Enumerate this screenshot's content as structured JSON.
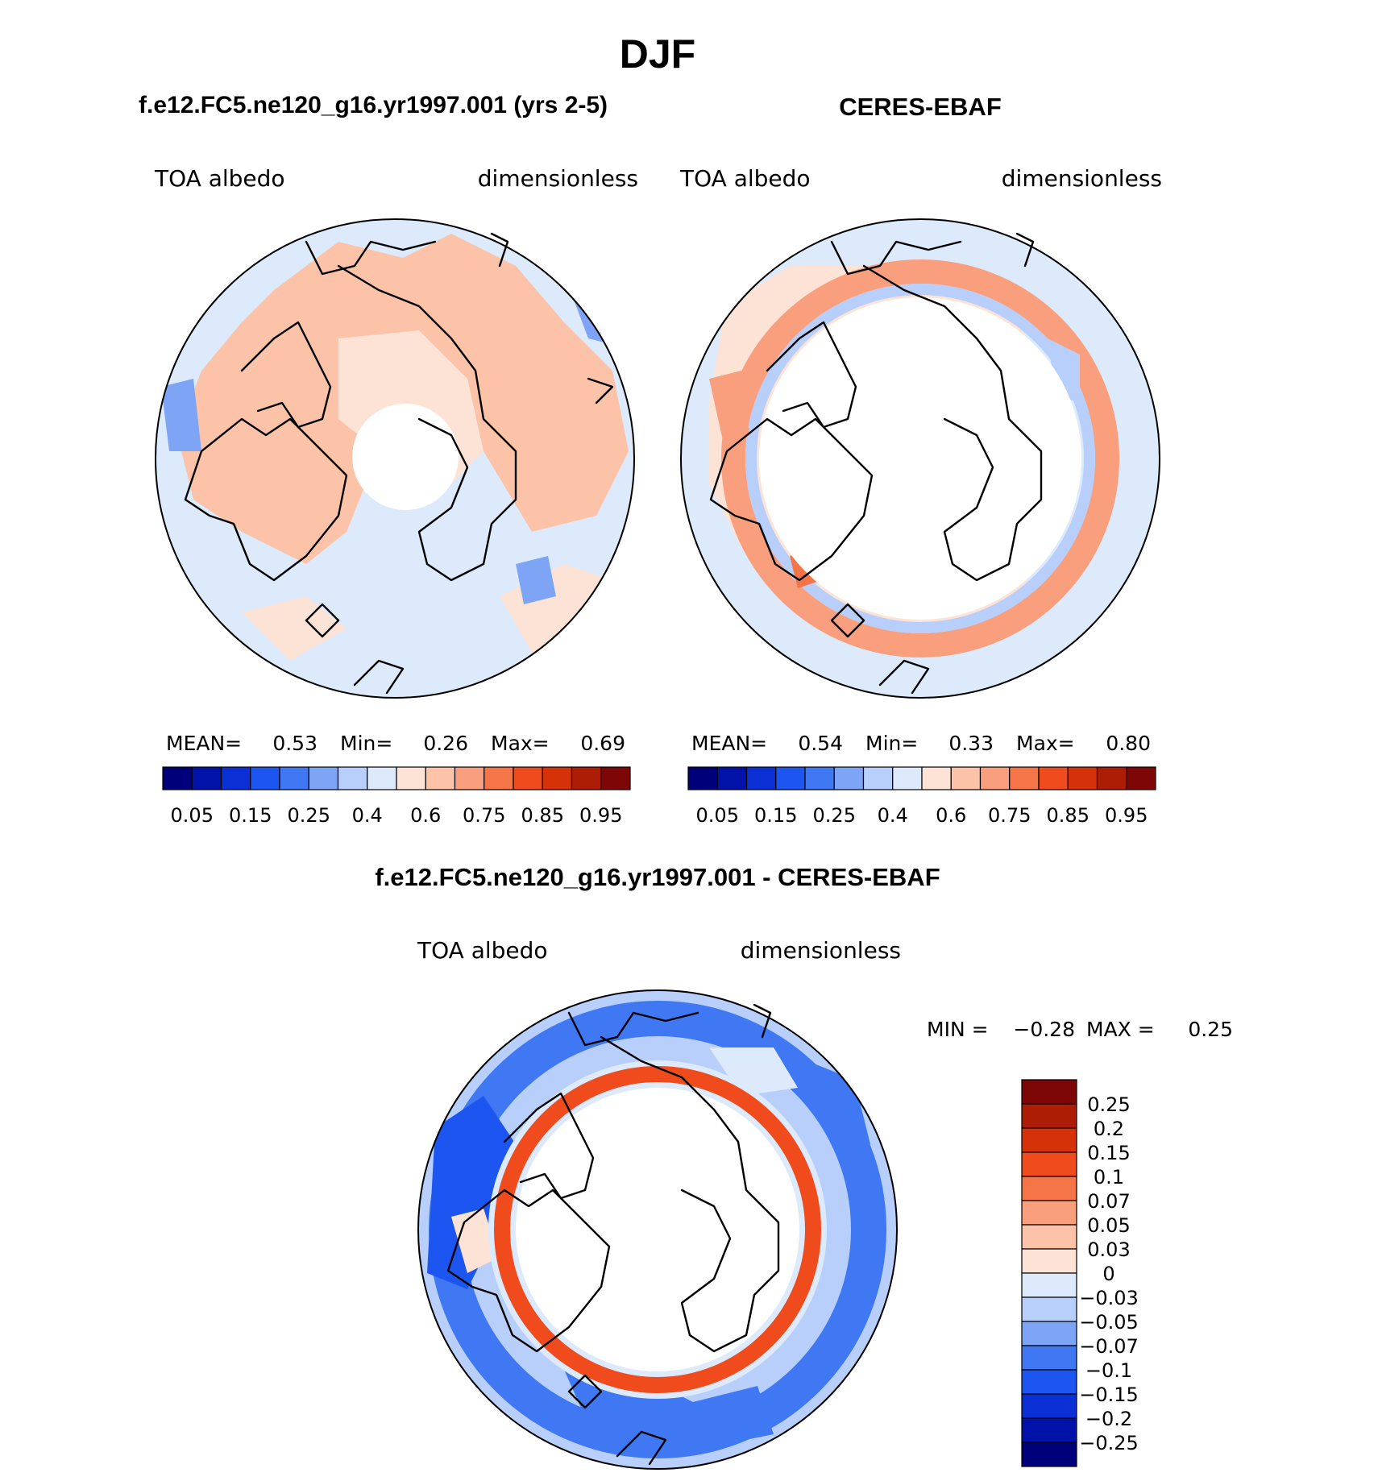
{
  "page": {
    "title": "DJF"
  },
  "colors": {
    "model_scale": [
      "#00007a",
      "#0012a8",
      "#0a2fd4",
      "#1d55f0",
      "#3f78f2",
      "#7ea4f5",
      "#b7cffa",
      "#dceafc",
      "#fde3d5",
      "#fcc3a9",
      "#f99f7e",
      "#f67548",
      "#f04b1d",
      "#d63209",
      "#ad1c04",
      "#7d0606"
    ],
    "diff_scale": [
      "#7d0606",
      "#ad1c04",
      "#d63209",
      "#f04b1d",
      "#f67548",
      "#f99f7e",
      "#fcc3a9",
      "#fde3d5",
      "#dceafc",
      "#b7cffa",
      "#7ea4f5",
      "#3f78f2",
      "#1d55f0",
      "#0a2fd4",
      "#0012a8",
      "#00007a"
    ],
    "polar_mask": "#ffffff",
    "coastline": "#000000"
  },
  "panels": {
    "model": {
      "title": "f.e12.FC5.ne120_g16.yr1997.001 (yrs 2-5)",
      "variable": "TOA albedo",
      "units": "dimensionless",
      "stats": {
        "mean_label": "MEAN=",
        "mean": "0.53",
        "min_label": "Min=",
        "min": "0.26",
        "max_label": "Max=",
        "max": "0.69"
      }
    },
    "obs": {
      "title": "CERES-EBAF",
      "variable": "TOA albedo",
      "units": "dimensionless",
      "stats": {
        "mean_label": "MEAN=",
        "mean": "0.54",
        "min_label": "Min=",
        "min": "0.33",
        "max_label": "Max=",
        "max": "0.80"
      }
    },
    "diff": {
      "title": "f.e12.FC5.ne120_g16.yr1997.001 - CERES-EBAF",
      "variable": "TOA albedo",
      "units": "dimensionless",
      "stats": {
        "min_label": "MIN =",
        "min": "−0.28",
        "max_label": "MAX =",
        "max": "0.25"
      }
    }
  },
  "colorbars": {
    "model_ticks": [
      "0.05",
      "0.15",
      "0.25",
      "0.4",
      "0.6",
      "0.75",
      "0.85",
      "0.95"
    ],
    "obs_ticks": [
      "0.05",
      "0.15",
      "0.25",
      "0.4",
      "0.6",
      "0.75",
      "0.85",
      "0.95"
    ],
    "diff_ticks": [
      "0.25",
      "0.2",
      "0.15",
      "0.1",
      "0.07",
      "0.05",
      "0.03",
      "0",
      "−0.03",
      "−0.05",
      "−0.07",
      "−0.1",
      "−0.15",
      "−0.2",
      "−0.25"
    ]
  }
}
